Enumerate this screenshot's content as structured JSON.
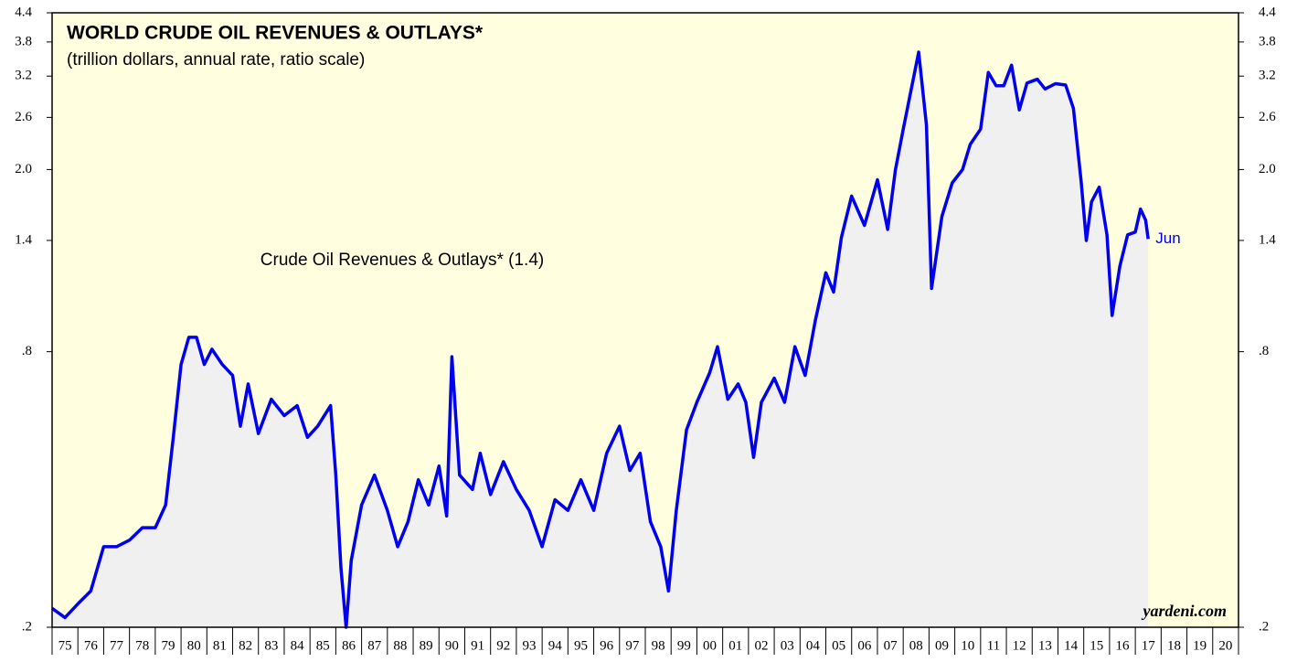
{
  "chart_data": {
    "type": "line",
    "title": "WORLD CRUDE OIL REVENUES & OUTLAYS*",
    "subtitle": "(trillion dollars, annual rate, ratio scale)",
    "log_scale": true,
    "background": "#ffffe0",
    "area_color": "#f0f0f0",
    "series": [
      {
        "name": "Crude Oil Revenues & Outlays* (1.4)",
        "color": "#0000ee",
        "end_label": "Jun",
        "x": [
          1975.0,
          1975.5,
          1976.0,
          1976.5,
          1977.0,
          1977.5,
          1978.0,
          1978.5,
          1979.0,
          1979.4,
          1979.7,
          1980.0,
          1980.3,
          1980.6,
          1980.9,
          1981.2,
          1981.6,
          1982.0,
          1982.3,
          1982.6,
          1983.0,
          1983.5,
          1984.0,
          1984.5,
          1984.9,
          1985.3,
          1985.8,
          1986.0,
          1986.2,
          1986.4,
          1986.6,
          1987.0,
          1987.5,
          1988.0,
          1988.4,
          1988.8,
          1989.2,
          1989.6,
          1990.0,
          1990.3,
          1990.5,
          1990.8,
          1991.3,
          1991.6,
          1992.0,
          1992.5,
          1993.0,
          1993.5,
          1994.0,
          1994.5,
          1995.0,
          1995.5,
          1996.0,
          1996.5,
          1997.0,
          1997.4,
          1997.8,
          1998.2,
          1998.6,
          1998.9,
          1999.2,
          1999.6,
          2000.0,
          2000.5,
          2000.8,
          2001.2,
          2001.6,
          2001.9,
          2002.2,
          2002.5,
          2003.0,
          2003.4,
          2003.8,
          2004.2,
          2004.6,
          2005.0,
          2005.3,
          2005.6,
          2006.0,
          2006.5,
          2007.0,
          2007.4,
          2007.7,
          2008.0,
          2008.3,
          2008.6,
          2008.9,
          2009.1,
          2009.5,
          2009.9,
          2010.3,
          2010.6,
          2011.0,
          2011.3,
          2011.6,
          2011.9,
          2012.2,
          2012.5,
          2012.8,
          2013.2,
          2013.5,
          2013.9,
          2014.3,
          2014.6,
          2014.9,
          2015.1,
          2015.3,
          2015.6,
          2015.9,
          2016.1,
          2016.4,
          2016.7,
          2017.0,
          2017.2,
          2017.4,
          2017.5
        ],
        "values": [
          0.22,
          0.21,
          0.225,
          0.24,
          0.3,
          0.3,
          0.31,
          0.33,
          0.33,
          0.37,
          0.52,
          0.75,
          0.86,
          0.86,
          0.75,
          0.81,
          0.75,
          0.71,
          0.55,
          0.68,
          0.53,
          0.63,
          0.58,
          0.61,
          0.52,
          0.55,
          0.61,
          0.43,
          0.27,
          0.2,
          0.28,
          0.37,
          0.43,
          0.36,
          0.3,
          0.34,
          0.42,
          0.37,
          0.45,
          0.35,
          0.78,
          0.43,
          0.4,
          0.48,
          0.39,
          0.46,
          0.4,
          0.36,
          0.3,
          0.38,
          0.36,
          0.42,
          0.36,
          0.48,
          0.55,
          0.44,
          0.48,
          0.34,
          0.3,
          0.24,
          0.36,
          0.54,
          0.62,
          0.72,
          0.82,
          0.63,
          0.68,
          0.62,
          0.47,
          0.62,
          0.7,
          0.62,
          0.82,
          0.71,
          0.94,
          1.19,
          1.08,
          1.42,
          1.75,
          1.51,
          1.9,
          1.48,
          2.0,
          2.45,
          2.97,
          3.61,
          2.5,
          1.1,
          1.58,
          1.87,
          2.0,
          2.27,
          2.45,
          3.26,
          3.05,
          3.05,
          3.38,
          2.7,
          3.09,
          3.15,
          3.0,
          3.08,
          3.06,
          2.72,
          1.88,
          1.4,
          1.7,
          1.83,
          1.44,
          0.96,
          1.23,
          1.44,
          1.46,
          1.64,
          1.55,
          1.41
        ]
      }
    ],
    "xlim": [
      1975,
      2021
    ],
    "xticks": [
      {
        "value": 1975,
        "label": "75"
      },
      {
        "value": 1976,
        "label": "76"
      },
      {
        "value": 1977,
        "label": "77"
      },
      {
        "value": 1978,
        "label": "78"
      },
      {
        "value": 1979,
        "label": "79"
      },
      {
        "value": 1980,
        "label": "80"
      },
      {
        "value": 1981,
        "label": "81"
      },
      {
        "value": 1982,
        "label": "82"
      },
      {
        "value": 1983,
        "label": "83"
      },
      {
        "value": 1984,
        "label": "84"
      },
      {
        "value": 1985,
        "label": "85"
      },
      {
        "value": 1986,
        "label": "86"
      },
      {
        "value": 1987,
        "label": "87"
      },
      {
        "value": 1988,
        "label": "88"
      },
      {
        "value": 1989,
        "label": "89"
      },
      {
        "value": 1990,
        "label": "90"
      },
      {
        "value": 1991,
        "label": "91"
      },
      {
        "value": 1992,
        "label": "92"
      },
      {
        "value": 1993,
        "label": "93"
      },
      {
        "value": 1994,
        "label": "94"
      },
      {
        "value": 1995,
        "label": "95"
      },
      {
        "value": 1996,
        "label": "96"
      },
      {
        "value": 1997,
        "label": "97"
      },
      {
        "value": 1998,
        "label": "98"
      },
      {
        "value": 1999,
        "label": "99"
      },
      {
        "value": 2000,
        "label": "00"
      },
      {
        "value": 2001,
        "label": "01"
      },
      {
        "value": 2002,
        "label": "02"
      },
      {
        "value": 2003,
        "label": "03"
      },
      {
        "value": 2004,
        "label": "04"
      },
      {
        "value": 2005,
        "label": "05"
      },
      {
        "value": 2006,
        "label": "06"
      },
      {
        "value": 2007,
        "label": "07"
      },
      {
        "value": 2008,
        "label": "08"
      },
      {
        "value": 2009,
        "label": "09"
      },
      {
        "value": 2010,
        "label": "10"
      },
      {
        "value": 2011,
        "label": "11"
      },
      {
        "value": 2012,
        "label": "12"
      },
      {
        "value": 2013,
        "label": "13"
      },
      {
        "value": 2014,
        "label": "14"
      },
      {
        "value": 2015,
        "label": "15"
      },
      {
        "value": 2016,
        "label": "16"
      },
      {
        "value": 2017,
        "label": "17"
      },
      {
        "value": 2018,
        "label": "18"
      },
      {
        "value": 2019,
        "label": "19"
      },
      {
        "value": 2020,
        "label": "20"
      }
    ],
    "ylim": [
      0.2,
      4.4
    ],
    "yticks": [
      {
        "value": 0.2,
        "label": ".2"
      },
      {
        "value": 0.8,
        "label": ".8"
      },
      1.4,
      {
        "value": 2.0,
        "label": "2.0"
      },
      2.6,
      3.2,
      3.8,
      4.4
    ],
    "source": "yardeni.com"
  }
}
